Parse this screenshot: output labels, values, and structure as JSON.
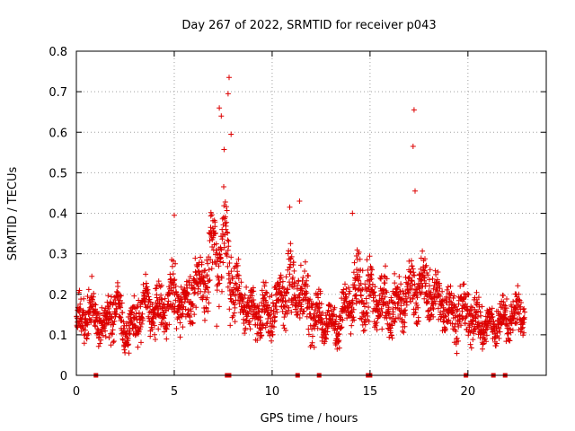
{
  "chart_data": {
    "type": "scatter",
    "title": "Day 267 of 2022, SRMTID for receiver p043",
    "xlabel": "GPS time / hours",
    "ylabel": "SRMTID / TECUs",
    "xlim": [
      0,
      24
    ],
    "ylim": [
      0,
      0.8
    ],
    "x_ticks": [
      0,
      5,
      10,
      15,
      20
    ],
    "y_ticks": [
      0,
      0.1,
      0.2,
      0.3,
      0.4,
      0.5,
      0.6,
      0.7,
      0.8
    ],
    "x_tick_labels": [
      "0",
      "5",
      "10",
      "15",
      "20"
    ],
    "y_tick_labels": [
      "0",
      "0.1",
      "0.2",
      "0.3",
      "0.4",
      "0.5",
      "0.6",
      "0.7",
      "0.8"
    ],
    "grid": true,
    "marker": "+",
    "color": "#dd0000",
    "zero_markers_x": [
      1.0,
      7.7,
      7.8,
      11.3,
      12.4,
      14.9,
      15.0,
      19.9,
      21.3,
      21.9
    ],
    "peaks": [
      {
        "x": 7.8,
        "y": 0.735
      },
      {
        "x": 7.75,
        "y": 0.695
      },
      {
        "x": 7.3,
        "y": 0.66
      },
      {
        "x": 7.4,
        "y": 0.64
      },
      {
        "x": 7.9,
        "y": 0.595
      },
      {
        "x": 17.25,
        "y": 0.655
      },
      {
        "x": 17.2,
        "y": 0.565
      },
      {
        "x": 17.3,
        "y": 0.455
      },
      {
        "x": 5.0,
        "y": 0.395
      },
      {
        "x": 11.4,
        "y": 0.43
      },
      {
        "x": 14.1,
        "y": 0.4
      },
      {
        "x": 10.9,
        "y": 0.415
      }
    ],
    "envelope": [
      {
        "x": 0.0,
        "mean": 0.13,
        "spread": 0.05
      },
      {
        "x": 0.7,
        "mean": 0.16,
        "spread": 0.08
      },
      {
        "x": 1.5,
        "mean": 0.12,
        "spread": 0.05
      },
      {
        "x": 2.0,
        "mean": 0.18,
        "spread": 0.09
      },
      {
        "x": 2.5,
        "mean": 0.1,
        "spread": 0.05
      },
      {
        "x": 3.5,
        "mean": 0.17,
        "spread": 0.08
      },
      {
        "x": 4.3,
        "mean": 0.15,
        "spread": 0.07
      },
      {
        "x": 5.0,
        "mean": 0.2,
        "spread": 0.09
      },
      {
        "x": 5.5,
        "mean": 0.17,
        "spread": 0.07
      },
      {
        "x": 6.5,
        "mean": 0.24,
        "spread": 0.09
      },
      {
        "x": 7.0,
        "mean": 0.3,
        "spread": 0.14
      },
      {
        "x": 7.5,
        "mean": 0.34,
        "spread": 0.18
      },
      {
        "x": 8.0,
        "mean": 0.22,
        "spread": 0.1
      },
      {
        "x": 9.0,
        "mean": 0.15,
        "spread": 0.07
      },
      {
        "x": 10.0,
        "mean": 0.16,
        "spread": 0.08
      },
      {
        "x": 10.8,
        "mean": 0.22,
        "spread": 0.11
      },
      {
        "x": 11.5,
        "mean": 0.2,
        "spread": 0.1
      },
      {
        "x": 12.3,
        "mean": 0.15,
        "spread": 0.07
      },
      {
        "x": 13.3,
        "mean": 0.12,
        "spread": 0.05
      },
      {
        "x": 14.2,
        "mean": 0.2,
        "spread": 0.1
      },
      {
        "x": 14.8,
        "mean": 0.2,
        "spread": 0.1
      },
      {
        "x": 15.5,
        "mean": 0.18,
        "spread": 0.08
      },
      {
        "x": 16.5,
        "mean": 0.17,
        "spread": 0.08
      },
      {
        "x": 17.3,
        "mean": 0.22,
        "spread": 0.09
      },
      {
        "x": 18.0,
        "mean": 0.21,
        "spread": 0.08
      },
      {
        "x": 19.0,
        "mean": 0.16,
        "spread": 0.07
      },
      {
        "x": 20.0,
        "mean": 0.15,
        "spread": 0.08
      },
      {
        "x": 21.0,
        "mean": 0.12,
        "spread": 0.06
      },
      {
        "x": 22.0,
        "mean": 0.14,
        "spread": 0.06
      },
      {
        "x": 22.9,
        "mean": 0.16,
        "spread": 0.06
      }
    ],
    "data_end_x": 22.9,
    "point_density_per_hour": 100
  }
}
